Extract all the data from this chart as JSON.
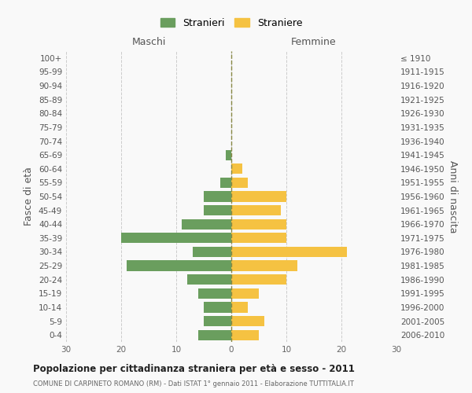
{
  "age_groups": [
    "0-4",
    "5-9",
    "10-14",
    "15-19",
    "20-24",
    "25-29",
    "30-34",
    "35-39",
    "40-44",
    "45-49",
    "50-54",
    "55-59",
    "60-64",
    "65-69",
    "70-74",
    "75-79",
    "80-84",
    "85-89",
    "90-94",
    "95-99",
    "100+"
  ],
  "birth_years": [
    "2006-2010",
    "2001-2005",
    "1996-2000",
    "1991-1995",
    "1986-1990",
    "1981-1985",
    "1976-1980",
    "1971-1975",
    "1966-1970",
    "1961-1965",
    "1956-1960",
    "1951-1955",
    "1946-1950",
    "1941-1945",
    "1936-1940",
    "1931-1935",
    "1926-1930",
    "1921-1925",
    "1916-1920",
    "1911-1915",
    "≤ 1910"
  ],
  "males": [
    6,
    5,
    5,
    6,
    8,
    19,
    7,
    20,
    9,
    5,
    5,
    2,
    0,
    1,
    0,
    0,
    0,
    0,
    0,
    0,
    0
  ],
  "females": [
    5,
    6,
    3,
    5,
    10,
    12,
    21,
    10,
    10,
    9,
    10,
    3,
    2,
    0,
    0,
    0,
    0,
    0,
    0,
    0,
    0
  ],
  "male_color": "#6a9e5e",
  "female_color": "#f5c242",
  "background_color": "#f9f9f9",
  "grid_color": "#cccccc",
  "dashed_line_color": "#888844",
  "title": "Popolazione per cittadinanza straniera per età e sesso - 2011",
  "subtitle": "COMUNE DI CARPINETO ROMANO (RM) - Dati ISTAT 1° gennaio 2011 - Elaborazione TUTTITALIA.IT",
  "left_label": "Maschi",
  "right_label": "Femmine",
  "y_left_label": "Fasce di età",
  "y_right_label": "Anni di nascita",
  "legend_male": "Stranieri",
  "legend_female": "Straniere",
  "xlim": 30,
  "bar_height": 0.75
}
